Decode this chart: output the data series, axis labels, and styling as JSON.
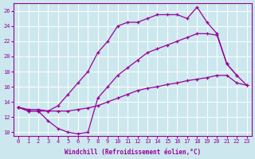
{
  "xlabel": "Windchill (Refroidissement éolien,°C)",
  "background_color": "#cce8ee",
  "line_color": "#990099",
  "grid_color": "#ffffff",
  "xlim": [
    -0.5,
    23.5
  ],
  "ylim": [
    9.5,
    27.0
  ],
  "xticks": [
    0,
    1,
    2,
    3,
    4,
    5,
    6,
    7,
    8,
    9,
    10,
    11,
    12,
    13,
    14,
    15,
    16,
    17,
    18,
    19,
    20,
    21,
    22,
    23
  ],
  "yticks": [
    10,
    12,
    14,
    16,
    18,
    20,
    22,
    24,
    26
  ],
  "line1_x": [
    0,
    1,
    2,
    3,
    4,
    5,
    6,
    7,
    8,
    9,
    10,
    11,
    12,
    13,
    14,
    15,
    16,
    17,
    18,
    19,
    20,
    21,
    22
  ],
  "line1_y": [
    13.3,
    12.8,
    12.8,
    11.5,
    10.5,
    10.0,
    9.8,
    10.0,
    14.5,
    16.0,
    17.5,
    18.5,
    19.5,
    20.5,
    21.0,
    21.5,
    22.0,
    22.5,
    23.0,
    23.0,
    22.8,
    19.0,
    17.5
  ],
  "line2_x": [
    0,
    1,
    2,
    3,
    4,
    5,
    6,
    7,
    8,
    9,
    10,
    11,
    12,
    13,
    14,
    15,
    16,
    17,
    18,
    19,
    20,
    21,
    22,
    23
  ],
  "line2_y": [
    13.3,
    12.8,
    12.8,
    12.8,
    13.5,
    15.0,
    16.5,
    18.0,
    20.5,
    22.0,
    24.0,
    24.5,
    24.5,
    25.0,
    25.5,
    25.5,
    25.5,
    25.0,
    26.5,
    24.5,
    23.0,
    19.0,
    17.5,
    16.2
  ],
  "line3_x": [
    0,
    1,
    2,
    3,
    4,
    5,
    6,
    7,
    8,
    9,
    10,
    11,
    12,
    13,
    14,
    15,
    16,
    17,
    18,
    19,
    20,
    21,
    22,
    23
  ],
  "line3_y": [
    13.3,
    13.0,
    13.0,
    12.8,
    12.8,
    12.8,
    13.0,
    13.2,
    13.5,
    14.0,
    14.5,
    15.0,
    15.5,
    15.8,
    16.0,
    16.3,
    16.5,
    16.8,
    17.0,
    17.2,
    17.5,
    17.5,
    16.5,
    16.2
  ]
}
